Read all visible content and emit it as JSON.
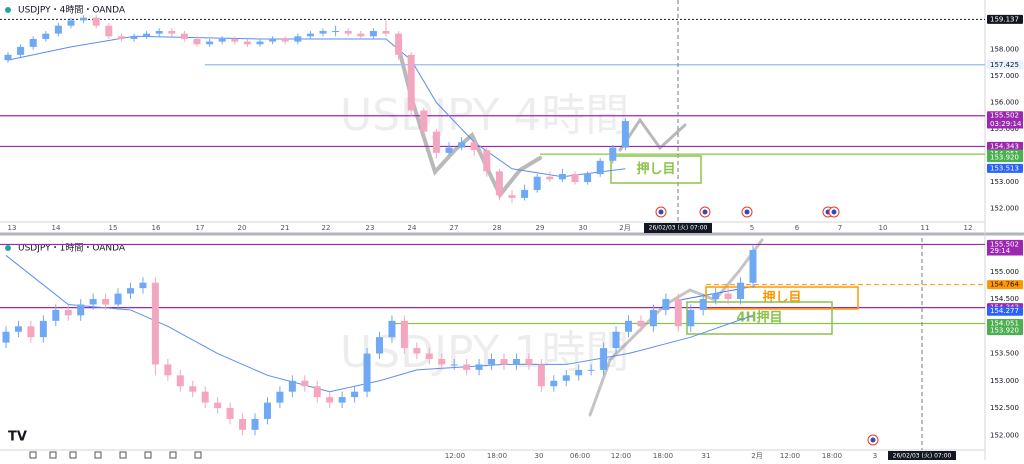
{
  "panels": [
    {
      "title": "USDJPY・4時間・OANDA",
      "watermark": "USDJPY 4時間",
      "ylim": [
        151.49,
        159.87
      ],
      "price_tags": [
        {
          "value": 159.137,
          "label": "159.137",
          "bg": "#131722",
          "fg": "#ffffff",
          "line": "#131722",
          "dash": "dotted"
        },
        {
          "value": 158,
          "label": "158.000"
        },
        {
          "value": 157.425,
          "label": "157.425",
          "bg": "#e8f1fd",
          "fg": "#131722",
          "line": "#90bdf5",
          "dash": "solid"
        },
        {
          "value": 157,
          "label": "157.000"
        },
        {
          "value": 156,
          "label": "156.000"
        },
        {
          "value": 155.502,
          "label": "155.502",
          "bg": "#9c27b0",
          "fg": "#ffffff",
          "line": "#9c27b0",
          "dash": "solid"
        },
        {
          "value": 155,
          "label": "155.000"
        },
        {
          "value": 154.343,
          "label": "154.343",
          "bg": "#9c27b0",
          "fg": "#ffffff",
          "line": "#9c27b0",
          "dash": "solid"
        },
        {
          "value": 154.051,
          "label": "154.051",
          "bg": "#4caf50",
          "fg": "#ffffff",
          "line": "#8bc34a",
          "dash": "solid"
        },
        {
          "value": 153.92,
          "label": "153.920",
          "bg": "#4caf50",
          "fg": "#ffffff"
        },
        {
          "value": 153.513,
          "label": "153.513",
          "bg": "#2962ff",
          "fg": "#ffffff"
        },
        {
          "value": 153,
          "label": "153.000"
        },
        {
          "value": 152,
          "label": "152.000"
        }
      ],
      "countdown": "03:29:14",
      "x_labels": [
        "13",
        "14",
        "15",
        "16",
        "17",
        "20",
        "21",
        "22",
        "23",
        "24",
        "27",
        "28",
        "29",
        "30",
        "2月",
        "5",
        "6",
        "7",
        "10",
        "11",
        "12"
      ],
      "cursor_label": "26/02/03 (火)  07:00",
      "annotations": [
        {
          "text": "押し目",
          "color": "#8bc34a"
        }
      ],
      "candles": {
        "open": [
          157.6,
          157.8,
          158.1,
          158.4,
          158.6,
          158.9,
          159.1,
          159.2,
          158.9,
          158.5,
          158.4,
          158.5,
          158.6,
          158.7,
          158.6,
          158.4,
          158.2,
          158.3,
          158.4,
          158.3,
          158.2,
          158.3,
          158.4,
          158.3,
          158.5,
          158.6,
          158.7,
          158.7,
          158.6,
          158.5,
          158.7,
          158.6,
          157.8,
          155.7,
          154.9,
          154.1,
          154.3,
          154.5,
          154.2,
          153.4,
          152.5,
          152.4,
          152.7,
          153.2,
          153.1,
          153.3,
          153.0,
          153.3,
          153.8,
          154.3
        ],
        "high": [
          157.9,
          158.2,
          158.5,
          158.7,
          159.0,
          159.2,
          159.3,
          159.3,
          159.0,
          158.6,
          158.6,
          158.7,
          158.8,
          158.8,
          158.7,
          158.5,
          158.4,
          158.5,
          158.5,
          158.4,
          158.4,
          158.5,
          158.5,
          158.6,
          158.7,
          158.8,
          158.9,
          158.8,
          158.7,
          158.8,
          159.1,
          158.7,
          157.9,
          155.8,
          155.0,
          154.5,
          154.7,
          154.6,
          154.3,
          153.5,
          152.7,
          152.9,
          153.3,
          153.4,
          153.5,
          153.4,
          153.4,
          153.9,
          154.4,
          155.4
        ],
        "low": [
          157.5,
          157.7,
          158.0,
          158.3,
          158.5,
          158.8,
          159.0,
          158.8,
          158.4,
          158.3,
          158.3,
          158.4,
          158.5,
          158.5,
          158.3,
          158.1,
          158.1,
          158.2,
          158.2,
          158.1,
          158.1,
          158.2,
          158.2,
          158.2,
          158.4,
          158.5,
          158.5,
          158.5,
          158.4,
          158.4,
          158.5,
          157.6,
          155.5,
          154.7,
          153.9,
          154.0,
          154.2,
          154.0,
          153.2,
          152.3,
          152.2,
          152.3,
          152.6,
          153.0,
          153.0,
          152.9,
          152.9,
          153.2,
          153.7,
          154.2
        ],
        "close": [
          157.8,
          158.1,
          158.4,
          158.6,
          158.9,
          159.1,
          159.2,
          158.9,
          158.5,
          158.4,
          158.5,
          158.6,
          158.7,
          158.6,
          158.4,
          158.2,
          158.3,
          158.4,
          158.3,
          158.2,
          158.3,
          158.4,
          158.3,
          158.5,
          158.6,
          158.7,
          158.7,
          158.6,
          158.5,
          158.7,
          158.6,
          157.8,
          155.7,
          154.9,
          154.1,
          154.3,
          154.5,
          154.2,
          153.4,
          152.5,
          152.4,
          152.7,
          153.2,
          153.1,
          153.3,
          153.0,
          153.3,
          153.8,
          154.3,
          155.3
        ],
        "up_color": "#6fa8f5",
        "down_color": "#f4a6bf"
      },
      "ma": {
        "x": [
          0,
          5,
          10,
          20,
          30,
          32,
          34,
          37,
          40,
          44,
          49
        ],
        "values": [
          157.6,
          158.1,
          158.5,
          158.4,
          158.4,
          157.6,
          156.0,
          154.5,
          153.5,
          153.2,
          153.5
        ],
        "color": "#5b8def"
      }
    },
    {
      "title": "USDJPY・1時間・OANDA",
      "watermark": "USDJPY 1時間",
      "ylim": [
        151.73,
        155.62
      ],
      "price_tags": [
        {
          "value": 155.502,
          "label": "155.502",
          "bg": "#9c27b0",
          "fg": "#ffffff",
          "line": "#9c27b0",
          "dash": "solid"
        },
        {
          "value": 155,
          "label": "155.000"
        },
        {
          "value": 154.764,
          "label": "154.764",
          "bg": "#ff9800",
          "fg": "#131722",
          "line": "#ff9800",
          "dash": "dashed"
        },
        {
          "value": 154.5,
          "label": "154.500"
        },
        {
          "value": 154.343,
          "label": "154.343",
          "bg": "#9c27b0",
          "fg": "#ffffff",
          "line": "#9c27b0",
          "dash": "solid"
        },
        {
          "value": 154.277,
          "label": "154.277",
          "bg": "#2962ff",
          "fg": "#ffffff"
        },
        {
          "value": 154.051,
          "label": "154.051",
          "bg": "#4caf50",
          "fg": "#ffffff",
          "line": "#8bc34a",
          "dash": "solid"
        },
        {
          "value": 153.92,
          "label": "153.920",
          "bg": "#4caf50",
          "fg": "#ffffff"
        },
        {
          "value": 153.5,
          "label": "153.500"
        },
        {
          "value": 153,
          "label": "153.000"
        },
        {
          "value": 152.5,
          "label": "152.500"
        },
        {
          "value": 152,
          "label": "152.000"
        }
      ],
      "countdown": "29:14",
      "x_labels": [
        "12:00",
        "18:00",
        "30",
        "06:00",
        "12:00",
        "18:00",
        "31",
        "2月",
        "12:00",
        "18:00",
        "3"
      ],
      "cursor_label": "26/02/03 (火)  07:00",
      "annotations": [
        {
          "text": "押し目",
          "color": "#ff9800"
        },
        {
          "text": "4H押目",
          "color": "#8bc34a"
        }
      ],
      "candles": {
        "open": [
          153.7,
          153.9,
          154.0,
          153.8,
          154.1,
          154.3,
          154.2,
          154.4,
          154.5,
          154.4,
          154.6,
          154.7,
          154.8,
          153.3,
          153.1,
          152.9,
          152.8,
          152.6,
          152.5,
          152.3,
          152.1,
          152.3,
          152.6,
          152.8,
          153.0,
          152.9,
          152.7,
          152.6,
          152.7,
          152.8,
          153.5,
          153.8,
          154.1,
          153.6,
          153.5,
          153.4,
          153.3,
          153.3,
          153.2,
          153.3,
          153.4,
          153.3,
          153.4,
          153.3,
          152.9,
          153.0,
          153.1,
          153.2,
          153.2,
          153.6,
          153.9,
          154.1,
          154.0,
          154.3,
          154.5,
          154.0,
          154.3,
          154.5,
          154.6,
          154.5,
          154.8
        ],
        "high": [
          154.0,
          154.1,
          154.1,
          154.2,
          154.4,
          154.4,
          154.5,
          154.6,
          154.6,
          154.7,
          154.8,
          154.9,
          154.9,
          153.4,
          153.2,
          153.0,
          152.9,
          152.7,
          152.6,
          152.4,
          152.4,
          152.7,
          152.9,
          153.1,
          153.1,
          153.0,
          152.8,
          152.8,
          152.9,
          153.6,
          153.9,
          154.2,
          154.2,
          153.7,
          153.6,
          153.5,
          153.4,
          153.4,
          153.4,
          153.5,
          153.5,
          153.5,
          153.5,
          153.4,
          153.1,
          153.2,
          153.3,
          153.3,
          153.7,
          154.0,
          154.2,
          154.2,
          154.4,
          154.6,
          154.6,
          154.4,
          154.6,
          154.7,
          154.7,
          154.9,
          155.5
        ],
        "low": [
          153.6,
          153.8,
          153.7,
          153.7,
          154.0,
          154.1,
          154.1,
          154.3,
          154.3,
          154.3,
          154.5,
          154.6,
          153.1,
          153.0,
          152.8,
          152.7,
          152.5,
          152.4,
          152.2,
          152.0,
          152.0,
          152.2,
          152.5,
          152.7,
          152.8,
          152.6,
          152.5,
          152.5,
          152.6,
          152.7,
          153.4,
          153.7,
          153.5,
          153.4,
          153.3,
          153.2,
          153.2,
          153.1,
          153.1,
          153.2,
          153.2,
          153.2,
          153.2,
          152.8,
          152.8,
          152.9,
          153.0,
          153.1,
          153.1,
          153.5,
          153.8,
          153.9,
          153.9,
          154.2,
          153.9,
          153.9,
          154.2,
          154.4,
          154.4,
          154.4,
          154.7
        ],
        "close": [
          153.9,
          154.0,
          153.8,
          154.1,
          154.3,
          154.2,
          154.4,
          154.5,
          154.4,
          154.6,
          154.7,
          154.8,
          153.3,
          153.1,
          152.9,
          152.8,
          152.6,
          152.5,
          152.3,
          152.1,
          152.3,
          152.6,
          152.8,
          153.0,
          152.9,
          152.7,
          152.6,
          152.7,
          152.8,
          153.5,
          153.8,
          154.1,
          153.6,
          153.5,
          153.4,
          153.3,
          153.3,
          153.2,
          153.3,
          153.4,
          153.3,
          153.4,
          153.3,
          152.9,
          153.0,
          153.1,
          153.2,
          153.2,
          153.6,
          153.9,
          154.1,
          154.0,
          154.3,
          154.5,
          154.0,
          154.3,
          154.5,
          154.6,
          154.5,
          154.8,
          155.4
        ],
        "up_color": "#6fa8f5",
        "down_color": "#f4a6bf"
      },
      "ma": {
        "x": [
          0,
          5,
          10,
          13,
          17,
          21,
          26,
          30,
          33,
          40,
          45,
          50,
          55,
          60
        ],
        "values": [
          155.3,
          154.4,
          154.3,
          154.0,
          153.5,
          153.1,
          152.8,
          153.0,
          153.2,
          153.3,
          153.3,
          153.5,
          153.8,
          154.2
        ],
        "color": "#5b8def"
      }
    }
  ]
}
